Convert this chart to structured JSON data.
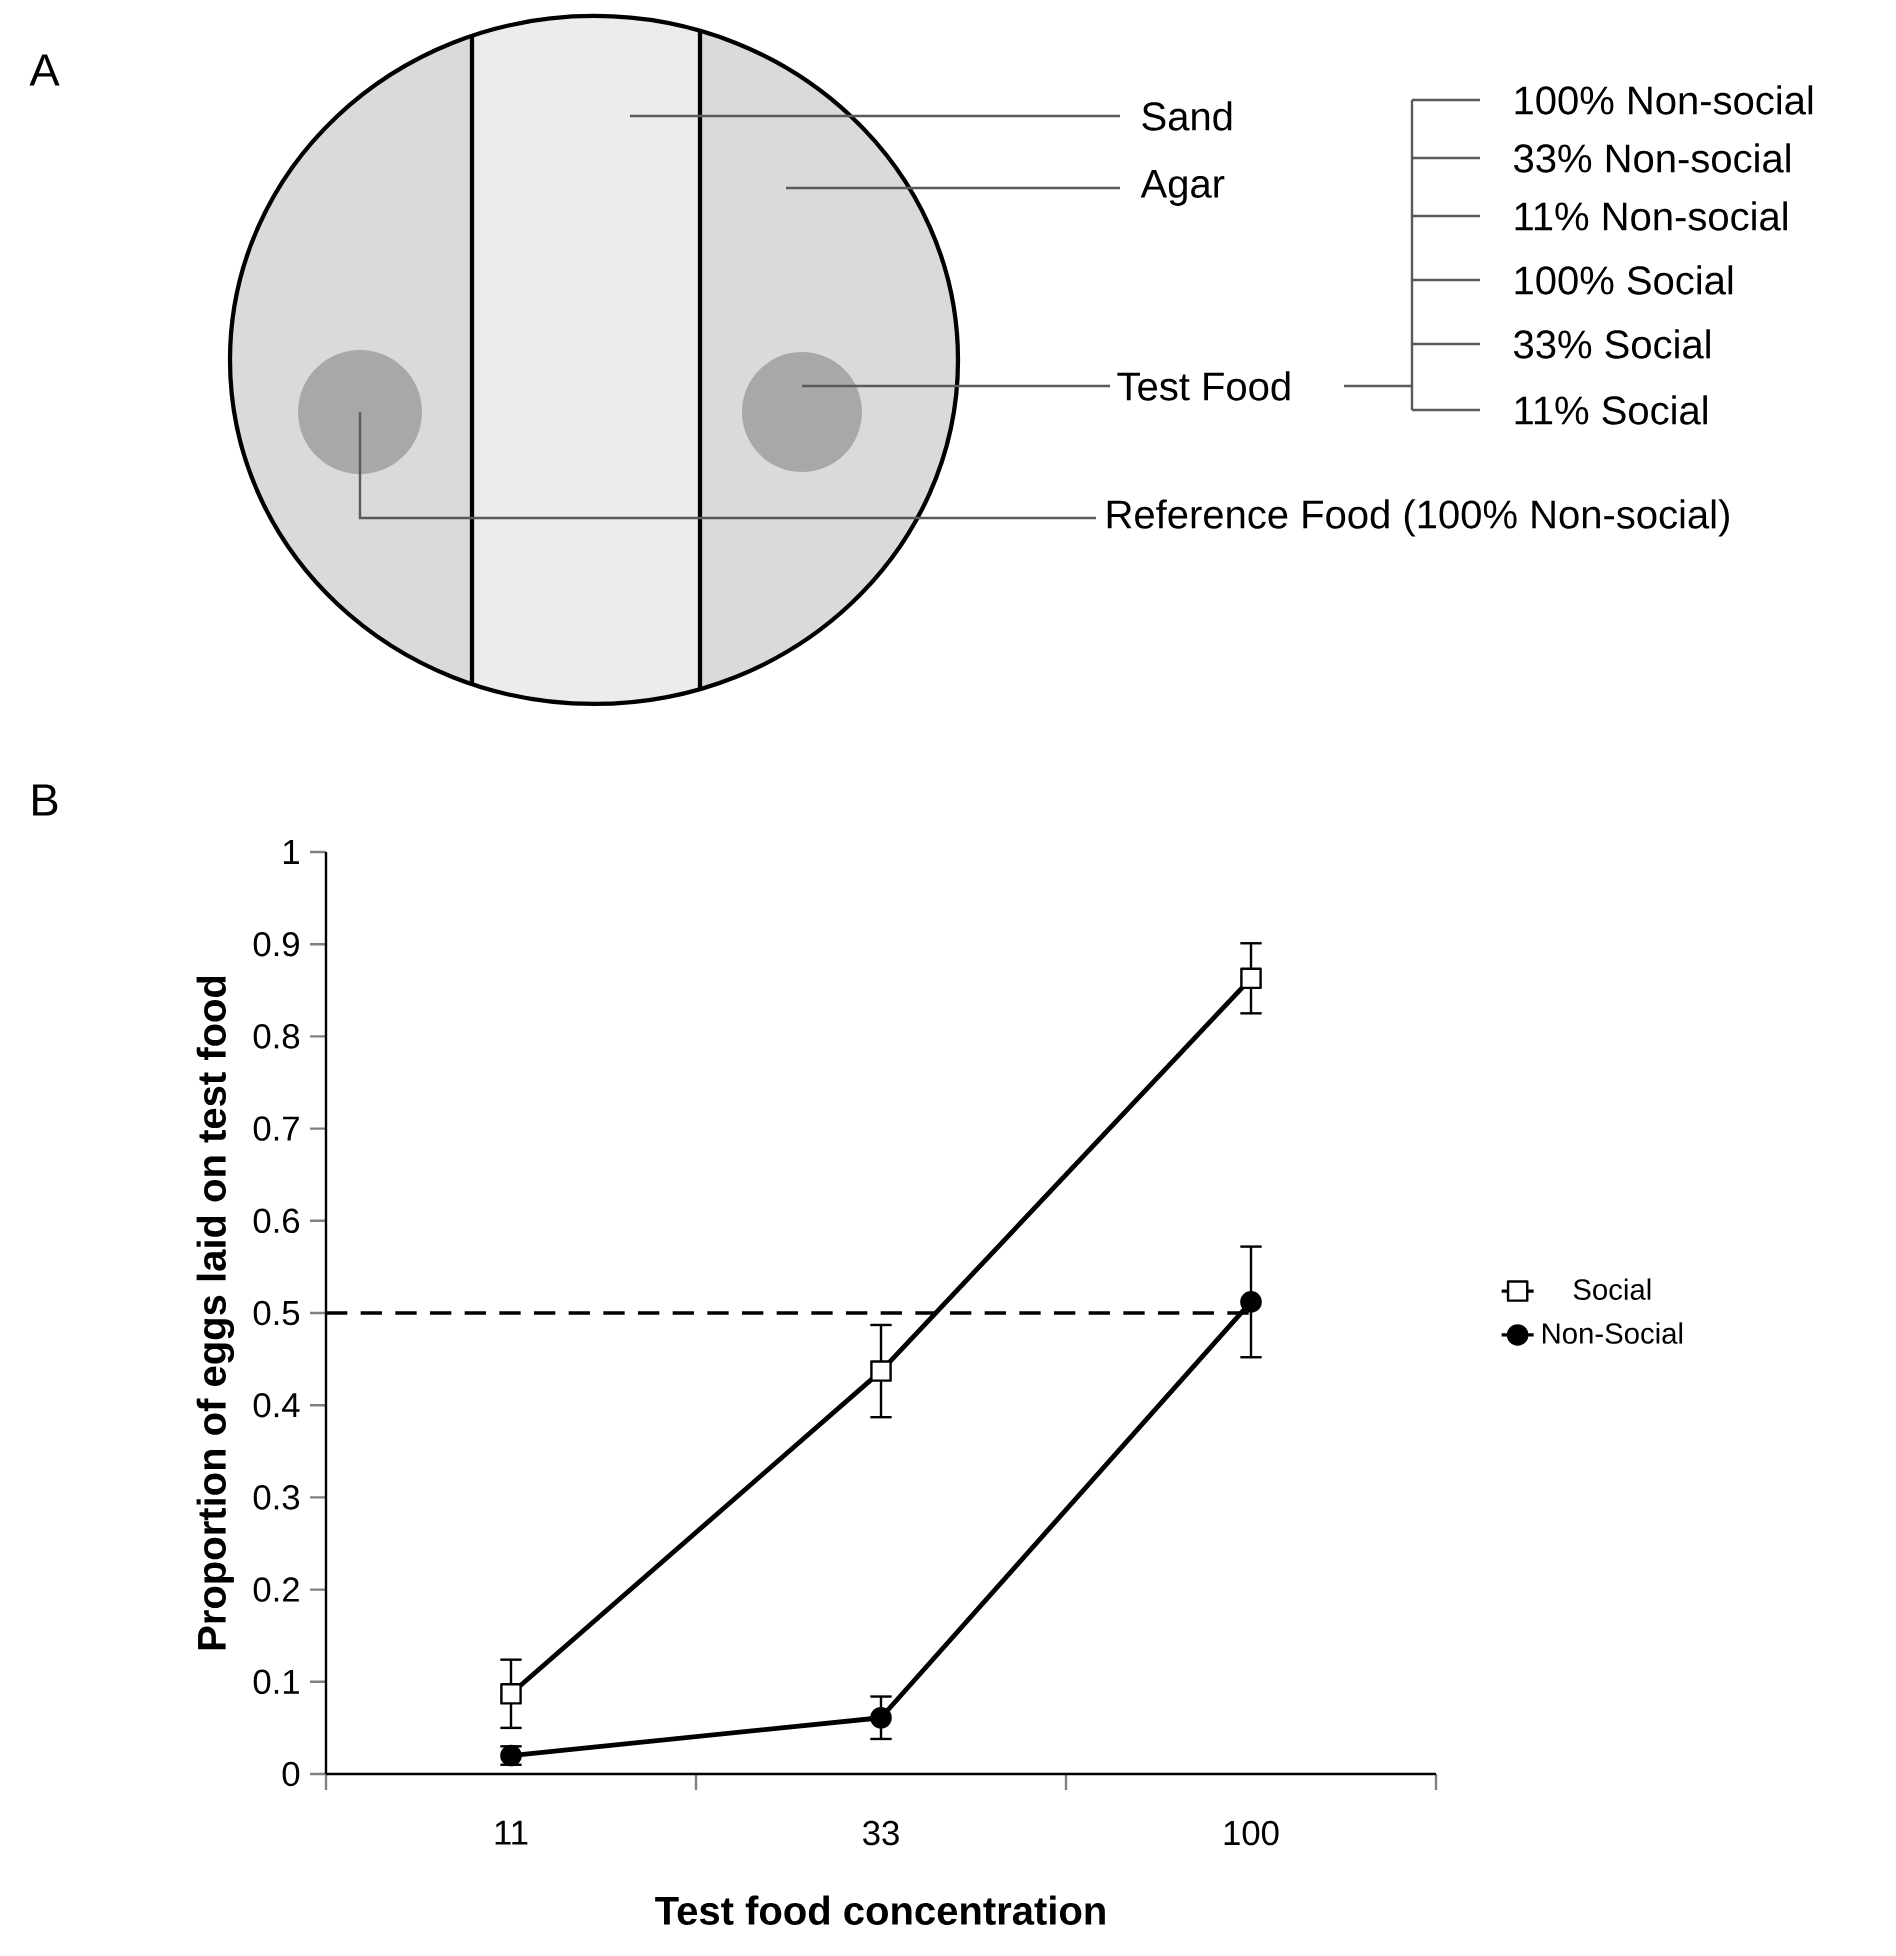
{
  "chart_data": [
    {
      "type": "other",
      "title": "A",
      "annotations": [
        "Sand",
        "Agar",
        "Test Food",
        "Reference Food (100% Non-social)",
        "100% Non-social",
        "33% Non-social",
        "11% Non-social",
        "100% Social",
        "33% Social",
        "11% Social"
      ]
    },
    {
      "type": "line",
      "title": "B",
      "xlabel": "Test food concentration",
      "ylabel": "Proportion of eggs laid on test food",
      "categories": [
        "11",
        "33",
        "100"
      ],
      "ylim": [
        0,
        1
      ],
      "yticks": [
        0,
        0.1,
        0.2,
        0.3,
        0.4,
        0.5,
        0.6,
        0.7,
        0.8,
        0.9,
        1
      ],
      "legend": "right",
      "line_style": "solid",
      "series": [
        {
          "name": "Social",
          "color": "#000000",
          "marker": "square",
          "values": [
            0.087,
            0.437,
            0.863
          ],
          "errors": [
            0.037,
            0.05,
            0.038
          ]
        },
        {
          "name": "Non-Social",
          "color": "#000000",
          "marker": "circle",
          "values": [
            0.02,
            0.061,
            0.512
          ],
          "errors": [
            0.01,
            0.023,
            0.06
          ]
        }
      ],
      "ref_lines": [
        {
          "axis": "y",
          "value": 0.5,
          "line_style": "dashed",
          "color": "#000000"
        }
      ]
    }
  ]
}
